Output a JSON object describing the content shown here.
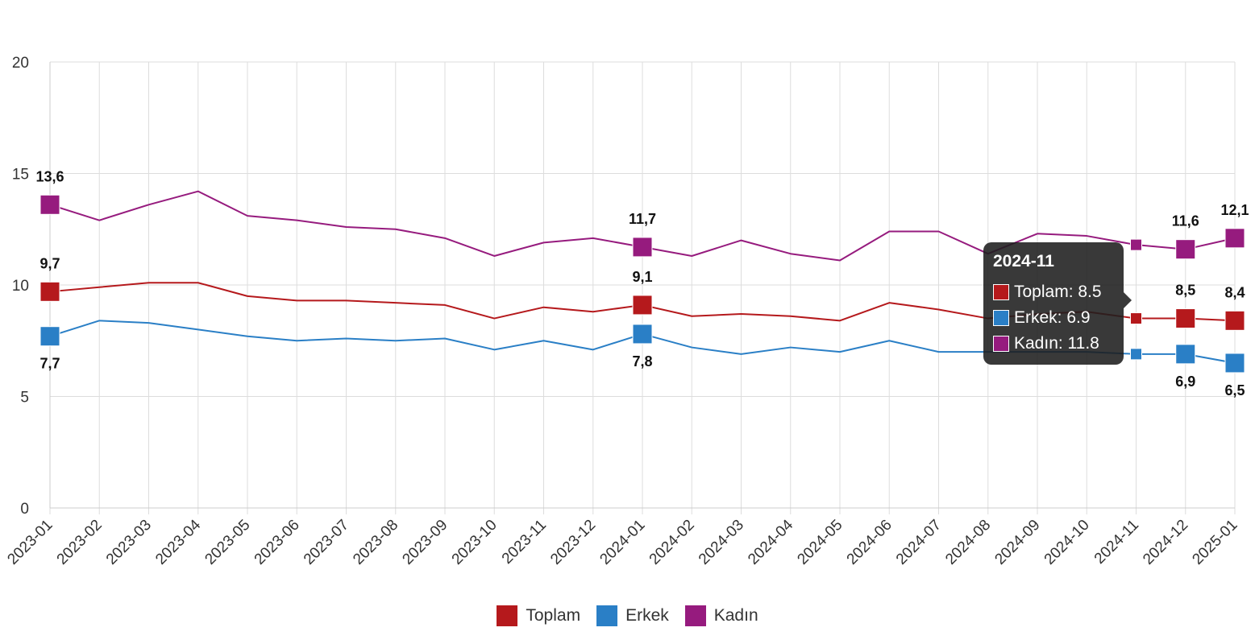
{
  "chart_data": {
    "type": "line",
    "categories": [
      "2023-01",
      "2023-02",
      "2023-03",
      "2023-04",
      "2023-05",
      "2023-06",
      "2023-07",
      "2023-08",
      "2023-09",
      "2023-10",
      "2023-11",
      "2023-12",
      "2024-01",
      "2024-02",
      "2024-03",
      "2024-04",
      "2024-05",
      "2024-06",
      "2024-07",
      "2024-08",
      "2024-09",
      "2024-10",
      "2024-11",
      "2024-12",
      "2025-01"
    ],
    "series": [
      {
        "name": "Toplam",
        "color": "#b5191c",
        "values": [
          9.7,
          9.9,
          10.1,
          10.1,
          9.5,
          9.3,
          9.3,
          9.2,
          9.1,
          8.5,
          9.0,
          8.8,
          9.1,
          8.6,
          8.7,
          8.6,
          8.4,
          9.2,
          8.9,
          8.5,
          8.7,
          8.8,
          8.5,
          8.5,
          8.4
        ]
      },
      {
        "name": "Erkek",
        "color": "#2a7fc6",
        "values": [
          7.7,
          8.4,
          8.3,
          8.0,
          7.7,
          7.5,
          7.6,
          7.5,
          7.6,
          7.1,
          7.5,
          7.1,
          7.8,
          7.2,
          6.9,
          7.2,
          7.0,
          7.5,
          7.0,
          7.0,
          7.0,
          7.0,
          6.9,
          6.9,
          6.5
        ]
      },
      {
        "name": "Kadın",
        "color": "#961b7e",
        "values": [
          13.6,
          12.9,
          13.6,
          14.2,
          13.1,
          12.9,
          12.6,
          12.5,
          12.1,
          11.3,
          11.9,
          12.1,
          11.7,
          11.3,
          12.0,
          11.4,
          11.1,
          12.4,
          12.4,
          11.4,
          12.3,
          12.2,
          11.8,
          11.6,
          12.1
        ]
      }
    ],
    "data_labels": [
      {
        "series": 2,
        "index": 0,
        "text": "13,6",
        "pos": "above"
      },
      {
        "series": 0,
        "index": 0,
        "text": "9,7",
        "pos": "above"
      },
      {
        "series": 1,
        "index": 0,
        "text": "7,7",
        "pos": "below"
      },
      {
        "series": 2,
        "index": 12,
        "text": "11,7",
        "pos": "above"
      },
      {
        "series": 0,
        "index": 12,
        "text": "9,1",
        "pos": "above"
      },
      {
        "series": 1,
        "index": 12,
        "text": "7,8",
        "pos": "below"
      },
      {
        "series": 2,
        "index": 23,
        "text": "11,6",
        "pos": "above"
      },
      {
        "series": 0,
        "index": 23,
        "text": "8,5",
        "pos": "above"
      },
      {
        "series": 1,
        "index": 23,
        "text": "6,9",
        "pos": "below"
      },
      {
        "series": 2,
        "index": 24,
        "text": "12,1",
        "pos": "above"
      },
      {
        "series": 0,
        "index": 24,
        "text": "8,4",
        "pos": "above"
      },
      {
        "series": 1,
        "index": 24,
        "text": "6,5",
        "pos": "below"
      }
    ],
    "highlighted_indices": [
      0,
      12,
      23,
      24
    ],
    "hover_index": 22,
    "ylim": [
      0,
      20
    ],
    "y_ticks": [
      "0",
      "5",
      "10",
      "15",
      "20"
    ],
    "grid": true,
    "legend_position": "bottom"
  },
  "legend": {
    "items": [
      {
        "label": "Toplam",
        "color": "#b5191c"
      },
      {
        "label": "Erkek",
        "color": "#2a7fc6"
      },
      {
        "label": "Kadın",
        "color": "#961b7e"
      }
    ]
  },
  "tooltip": {
    "title": "2024-11",
    "rows": [
      {
        "text": "Toplam: 8.5",
        "color": "#b5191c"
      },
      {
        "text": "Erkek: 6.9",
        "color": "#2a7fc6"
      },
      {
        "text": "Kadın: 11.8",
        "color": "#961b7e"
      }
    ]
  }
}
